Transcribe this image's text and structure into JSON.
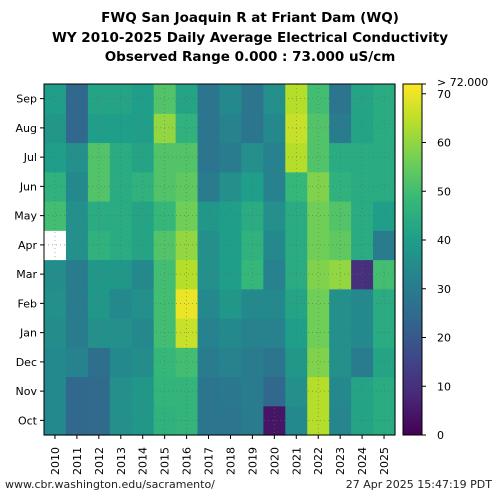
{
  "title_lines": [
    "FWQ San Joaquin R at Friant Dam (WQ)",
    "WY 2010-2025 Daily Average Electrical Conductivity",
    "Observed Range 0.000 : 73.000 uS/cm"
  ],
  "footer": {
    "left": "www.cbr.washington.edu/sacramento/",
    "right": "27 Apr 2025 15:47:19 PDT"
  },
  "chart_data": {
    "type": "heatmap",
    "x_categories": [
      "2010",
      "2011",
      "2012",
      "2013",
      "2014",
      "2015",
      "2016",
      "2017",
      "2018",
      "2019",
      "2020",
      "2021",
      "2022",
      "2023",
      "2024",
      "2025"
    ],
    "y_categories": [
      "Oct",
      "Nov",
      "Dec",
      "Jan",
      "Feb",
      "Mar",
      "Apr",
      "May",
      "Jun",
      "Jul",
      "Aug",
      "Sep"
    ],
    "values": [
      [
        34,
        24,
        25,
        36,
        38,
        46,
        47,
        28,
        28,
        30,
        4,
        34,
        64,
        33,
        42,
        44
      ],
      [
        34,
        24,
        25,
        36,
        38,
        47,
        47,
        28,
        29,
        30,
        24,
        36,
        64,
        34,
        42,
        44
      ],
      [
        34,
        32,
        26,
        34,
        35,
        48,
        50,
        30,
        32,
        30,
        28,
        38,
        58,
        36,
        30,
        42
      ],
      [
        35,
        30,
        36,
        36,
        34,
        50,
        66,
        32,
        34,
        32,
        32,
        40,
        56,
        36,
        34,
        44
      ],
      [
        36,
        30,
        38,
        34,
        36,
        50,
        70,
        34,
        38,
        34,
        34,
        42,
        56,
        36,
        34,
        44
      ],
      [
        35,
        30,
        38,
        38,
        34,
        50,
        64,
        36,
        40,
        48,
        32,
        44,
        58,
        60,
        10,
        50
      ],
      null,
      [
        50,
        36,
        44,
        44,
        42,
        48,
        56,
        38,
        40,
        44,
        36,
        44,
        56,
        52,
        44,
        40
      ],
      [
        46,
        34,
        52,
        44,
        46,
        52,
        54,
        30,
        36,
        40,
        32,
        48,
        58,
        46,
        44,
        44
      ],
      [
        40,
        36,
        52,
        44,
        42,
        52,
        52,
        28,
        30,
        36,
        32,
        64,
        52,
        44,
        44,
        44
      ],
      [
        38,
        24,
        40,
        40,
        40,
        60,
        46,
        28,
        32,
        28,
        34,
        66,
        52,
        30,
        42,
        44
      ],
      [
        40,
        24,
        42,
        42,
        40,
        52,
        42,
        28,
        34,
        28,
        36,
        64,
        50,
        28,
        42,
        44
      ]
    ],
    "april_values": [
      null,
      36,
      46,
      44,
      42,
      52,
      60,
      36,
      40,
      46,
      34,
      44,
      56,
      54,
      44,
      30
    ],
    "colorbar": {
      "min": 0,
      "max": 72,
      "ticks": [
        0,
        10,
        20,
        30,
        40,
        50,
        60,
        70
      ],
      "over_label": "> 72.000",
      "colormap": "viridis"
    },
    "grid": true
  },
  "colors": {
    "viridis": [
      "#440154",
      "#482878",
      "#3e4989",
      "#31688e",
      "#26828e",
      "#1f9e89",
      "#35b779",
      "#6ece58",
      "#b5de2b",
      "#fde725"
    ]
  }
}
